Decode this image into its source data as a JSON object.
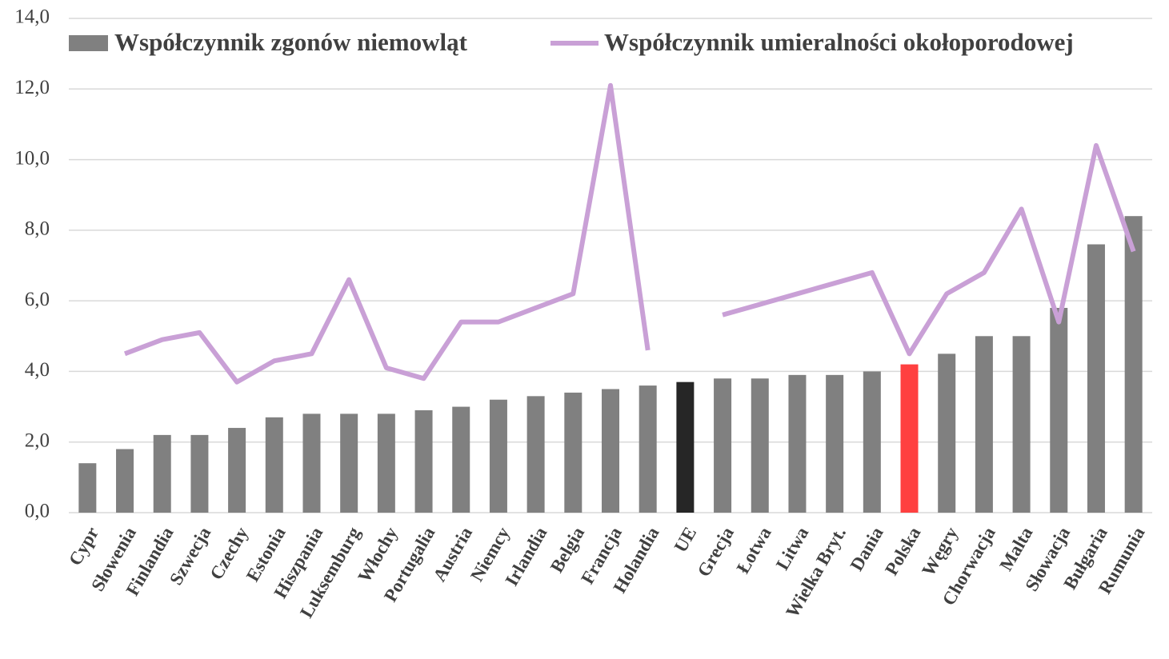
{
  "chart_data": {
    "type": "bar_line",
    "categories": [
      "Cypr",
      "Słowenia",
      "Finlandia",
      "Szwecja",
      "Czechy",
      "Estonia",
      "Hiszpania",
      "Luksemburg",
      "Włochy",
      "Portugalia",
      "Austria",
      "Niemcy",
      "Irlandia",
      "Belgia",
      "Francja",
      "Holandia",
      "UE",
      "Grecja",
      "Łotwa",
      "Litwa",
      "Wielka Bryt.",
      "Dania",
      "Polska",
      "Węgry",
      "Chorwacja",
      "Malta",
      "Słowacja",
      "Bułgaria",
      "Rumunia"
    ],
    "series": [
      {
        "name": "Współczynnik zgonów niemowląt",
        "type": "bar",
        "color": "#808080",
        "colors": [
          "#808080",
          "#808080",
          "#808080",
          "#808080",
          "#808080",
          "#808080",
          "#808080",
          "#808080",
          "#808080",
          "#808080",
          "#808080",
          "#808080",
          "#808080",
          "#808080",
          "#808080",
          "#808080",
          "#262626",
          "#808080",
          "#808080",
          "#808080",
          "#808080",
          "#808080",
          "#ff4040",
          "#808080",
          "#808080",
          "#808080",
          "#808080",
          "#808080",
          "#808080"
        ],
        "values": [
          1.4,
          1.8,
          2.2,
          2.2,
          2.4,
          2.7,
          2.8,
          2.8,
          2.8,
          2.9,
          3.0,
          3.2,
          3.3,
          3.4,
          3.5,
          3.6,
          3.7,
          3.8,
          3.8,
          3.9,
          3.9,
          4.0,
          4.2,
          4.5,
          5.0,
          5.0,
          5.8,
          7.6,
          8.4
        ]
      },
      {
        "name": "Współczynnik umieralności okołoporodowej",
        "type": "line",
        "color": "#c9a0d6",
        "values": [
          null,
          4.5,
          4.9,
          5.1,
          3.7,
          4.3,
          4.5,
          6.6,
          4.1,
          3.8,
          5.4,
          5.4,
          5.8,
          6.2,
          12.1,
          4.6,
          null,
          5.6,
          5.9,
          6.2,
          6.5,
          6.8,
          4.5,
          6.2,
          6.8,
          8.6,
          5.4,
          10.4,
          7.4
        ]
      }
    ],
    "ylim": [
      0,
      14
    ],
    "yticks": [
      {
        "value": 0,
        "label": "0,0"
      },
      {
        "value": 2,
        "label": "2,0"
      },
      {
        "value": 4,
        "label": "4,0"
      },
      {
        "value": 6,
        "label": "6,0"
      },
      {
        "value": 8,
        "label": "8,0"
      },
      {
        "value": 10,
        "label": "10,0"
      },
      {
        "value": 12,
        "label": "12,0"
      },
      {
        "value": 14,
        "label": "14,0"
      }
    ],
    "grid": true,
    "legend": "top"
  }
}
